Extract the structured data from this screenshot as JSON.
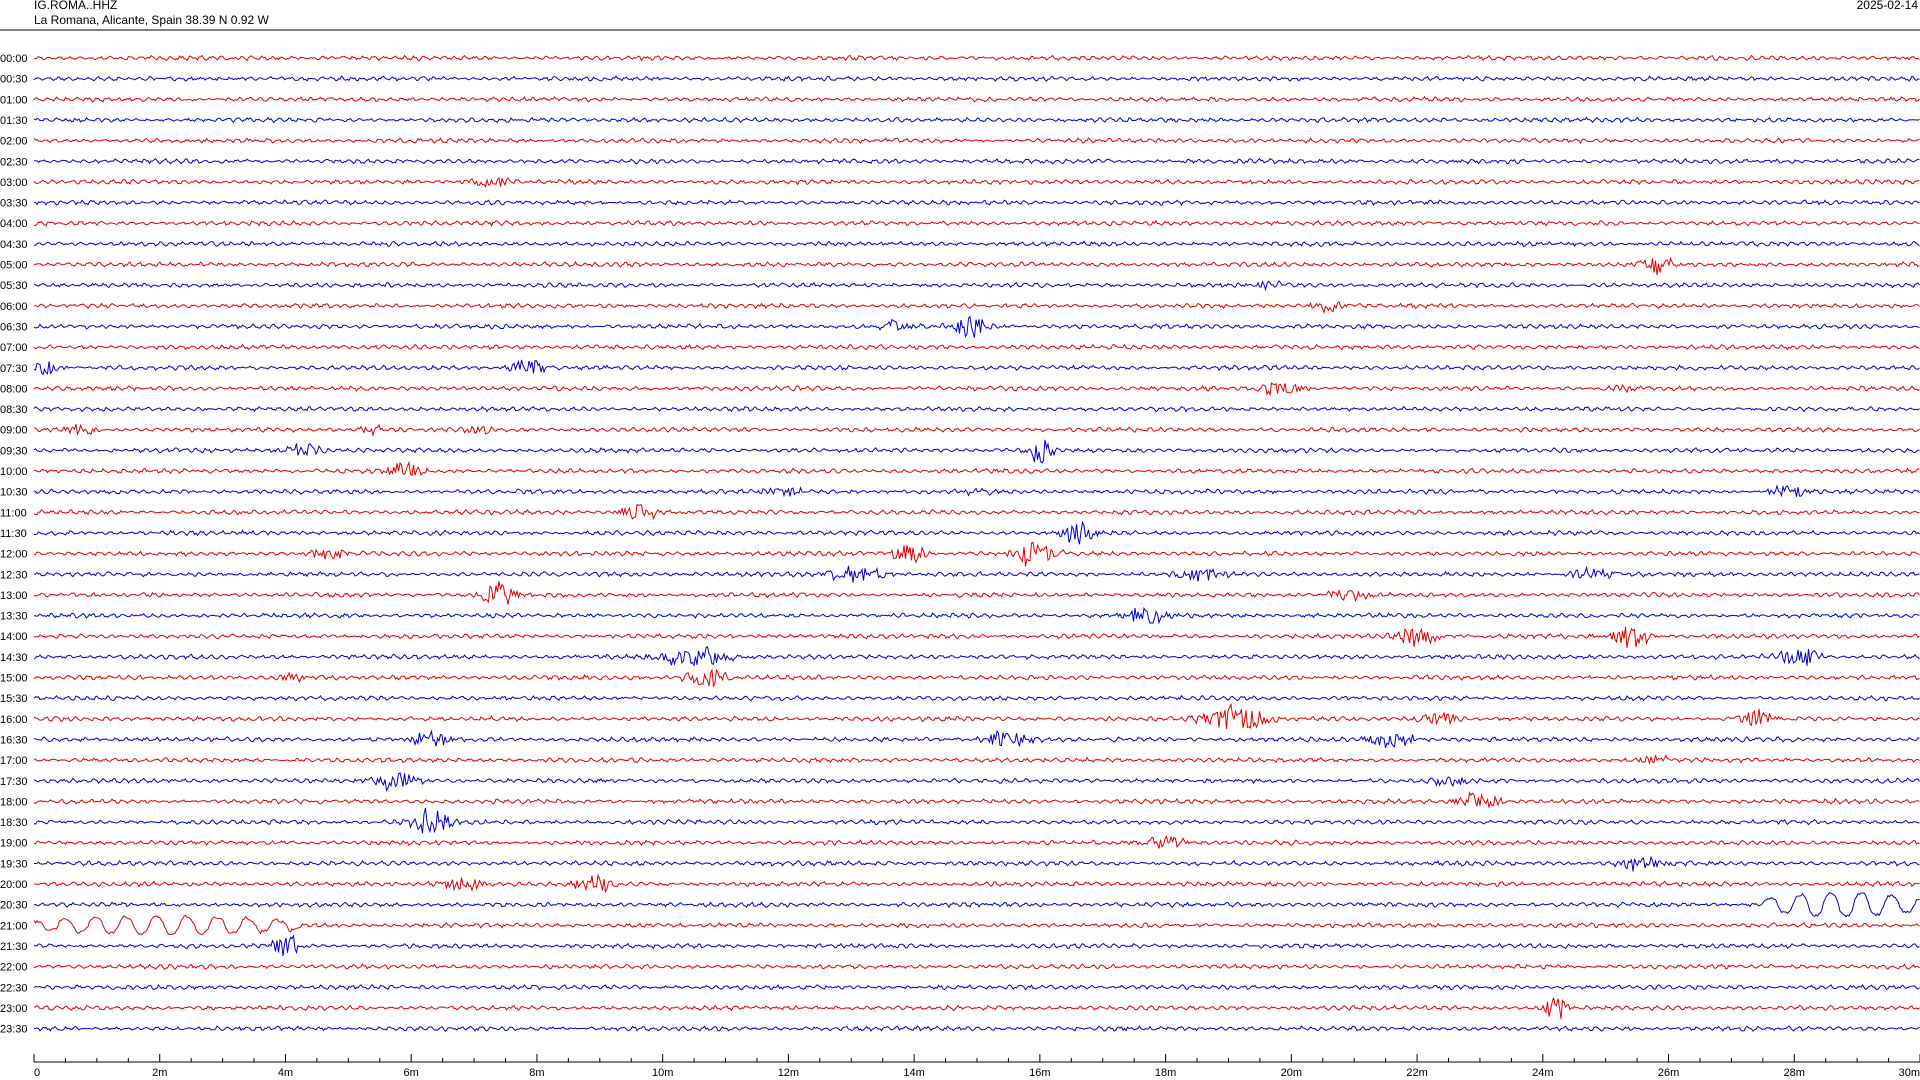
{
  "header": {
    "station": "IG.ROMA..HHZ",
    "location": "La Romana, Alicante, Spain  38.39 N 0.92 W",
    "date": "2025-02-14"
  },
  "chart_data": {
    "type": "line",
    "title": "",
    "xlabel": "",
    "ylabel": "",
    "x_range_minutes": [
      0,
      30
    ],
    "x_ticks": [
      "0",
      "2m",
      "4m",
      "6m",
      "8m",
      "10m",
      "12m",
      "14m",
      "16m",
      "18m",
      "20m",
      "22m",
      "24m",
      "26m",
      "28m",
      "30m"
    ],
    "row_labels": [
      "00:00",
      "00:30",
      "01:00",
      "01:30",
      "02:00",
      "02:30",
      "03:00",
      "03:30",
      "04:00",
      "04:30",
      "05:00",
      "05:30",
      "06:00",
      "06:30",
      "07:00",
      "07:30",
      "08:00",
      "08:30",
      "09:00",
      "09:30",
      "10:00",
      "10:30",
      "11:00",
      "11:30",
      "12:00",
      "12:30",
      "13:00",
      "13:30",
      "14:00",
      "14:30",
      "15:00",
      "15:30",
      "16:00",
      "16:30",
      "17:00",
      "17:30",
      "18:00",
      "18:30",
      "19:00",
      "19:30",
      "20:00",
      "20:30",
      "21:00",
      "21:30",
      "22:00",
      "22:30",
      "23:00",
      "23:30"
    ],
    "colors": {
      "even_rows": "#e00000",
      "odd_rows": "#0000d0"
    },
    "grid": false,
    "events": [
      {
        "row": 6,
        "minute": 7.3,
        "amp": 0.6,
        "dur": 1.0
      },
      {
        "row": 10,
        "minute": 25.8,
        "amp": 1.1,
        "dur": 0.6
      },
      {
        "row": 11,
        "minute": 19.6,
        "amp": 0.5,
        "dur": 0.6
      },
      {
        "row": 12,
        "minute": 20.6,
        "amp": 0.7,
        "dur": 0.6
      },
      {
        "row": 13,
        "minute": 13.7,
        "amp": 0.6,
        "dur": 0.8
      },
      {
        "row": 13,
        "minute": 14.9,
        "amp": 1.4,
        "dur": 0.6
      },
      {
        "row": 15,
        "minute": 0.2,
        "amp": 0.9,
        "dur": 0.5
      },
      {
        "row": 15,
        "minute": 7.9,
        "amp": 1.2,
        "dur": 0.6
      },
      {
        "row": 16,
        "minute": 19.8,
        "amp": 0.7,
        "dur": 0.8
      },
      {
        "row": 16,
        "minute": 25.3,
        "amp": 0.5,
        "dur": 0.6
      },
      {
        "row": 18,
        "minute": 0.7,
        "amp": 0.6,
        "dur": 0.6
      },
      {
        "row": 18,
        "minute": 5.4,
        "amp": 0.6,
        "dur": 0.5
      },
      {
        "row": 18,
        "minute": 7.0,
        "amp": 0.5,
        "dur": 0.6
      },
      {
        "row": 19,
        "minute": 4.3,
        "amp": 0.8,
        "dur": 0.7
      },
      {
        "row": 19,
        "minute": 16.0,
        "amp": 1.5,
        "dur": 0.4
      },
      {
        "row": 20,
        "minute": 5.9,
        "amp": 1.1,
        "dur": 0.6
      },
      {
        "row": 21,
        "minute": 11.9,
        "amp": 0.6,
        "dur": 0.8
      },
      {
        "row": 21,
        "minute": 15.0,
        "amp": 0.4,
        "dur": 0.5
      },
      {
        "row": 21,
        "minute": 27.9,
        "amp": 0.8,
        "dur": 0.7
      },
      {
        "row": 22,
        "minute": 9.6,
        "amp": 0.8,
        "dur": 0.8
      },
      {
        "row": 23,
        "minute": 16.6,
        "amp": 1.2,
        "dur": 0.6
      },
      {
        "row": 24,
        "minute": 4.7,
        "amp": 0.8,
        "dur": 0.7
      },
      {
        "row": 24,
        "minute": 13.9,
        "amp": 1.6,
        "dur": 0.5
      },
      {
        "row": 24,
        "minute": 15.9,
        "amp": 1.5,
        "dur": 0.7
      },
      {
        "row": 25,
        "minute": 13.1,
        "amp": 0.9,
        "dur": 1.0
      },
      {
        "row": 25,
        "minute": 18.5,
        "amp": 0.8,
        "dur": 0.8
      },
      {
        "row": 25,
        "minute": 24.8,
        "amp": 0.8,
        "dur": 0.8
      },
      {
        "row": 26,
        "minute": 7.4,
        "amp": 1.6,
        "dur": 0.6
      },
      {
        "row": 26,
        "minute": 20.9,
        "amp": 0.7,
        "dur": 0.7
      },
      {
        "row": 27,
        "minute": 17.7,
        "amp": 0.9,
        "dur": 0.8
      },
      {
        "row": 28,
        "minute": 22.0,
        "amp": 1.1,
        "dur": 0.8
      },
      {
        "row": 28,
        "minute": 25.4,
        "amp": 1.2,
        "dur": 0.7
      },
      {
        "row": 29,
        "minute": 10.5,
        "amp": 1.3,
        "dur": 1.2
      },
      {
        "row": 29,
        "minute": 28.1,
        "amp": 1.1,
        "dur": 0.8
      },
      {
        "row": 30,
        "minute": 4.1,
        "amp": 0.6,
        "dur": 0.5
      },
      {
        "row": 30,
        "minute": 10.7,
        "amp": 1.2,
        "dur": 0.7
      },
      {
        "row": 32,
        "minute": 19.1,
        "amp": 1.5,
        "dur": 1.1
      },
      {
        "row": 32,
        "minute": 22.3,
        "amp": 0.7,
        "dur": 0.8
      },
      {
        "row": 32,
        "minute": 27.4,
        "amp": 1.0,
        "dur": 0.6
      },
      {
        "row": 33,
        "minute": 6.3,
        "amp": 0.8,
        "dur": 0.8
      },
      {
        "row": 33,
        "minute": 15.5,
        "amp": 1.0,
        "dur": 0.8
      },
      {
        "row": 33,
        "minute": 21.6,
        "amp": 1.1,
        "dur": 0.8
      },
      {
        "row": 34,
        "minute": 25.8,
        "amp": 0.6,
        "dur": 0.6
      },
      {
        "row": 35,
        "minute": 5.7,
        "amp": 1.2,
        "dur": 0.8
      },
      {
        "row": 35,
        "minute": 22.5,
        "amp": 0.8,
        "dur": 0.7
      },
      {
        "row": 36,
        "minute": 23.0,
        "amp": 1.0,
        "dur": 0.8
      },
      {
        "row": 37,
        "minute": 6.3,
        "amp": 1.5,
        "dur": 0.7
      },
      {
        "row": 38,
        "minute": 18.0,
        "amp": 0.8,
        "dur": 0.8
      },
      {
        "row": 39,
        "minute": 25.6,
        "amp": 0.9,
        "dur": 0.8
      },
      {
        "row": 40,
        "minute": 6.8,
        "amp": 0.8,
        "dur": 0.8
      },
      {
        "row": 40,
        "minute": 8.9,
        "amp": 1.0,
        "dur": 0.7
      },
      {
        "row": 43,
        "minute": 4.0,
        "amp": 1.4,
        "dur": 0.5
      },
      {
        "row": 46,
        "minute": 24.2,
        "amp": 1.4,
        "dur": 0.4
      }
    ],
    "long_period": [
      {
        "row": 42,
        "start": 0.0,
        "end": 4.2,
        "amp": 1.2
      },
      {
        "row": 41,
        "start": 27.5,
        "end": 30.0,
        "amp": 1.6
      }
    ]
  }
}
